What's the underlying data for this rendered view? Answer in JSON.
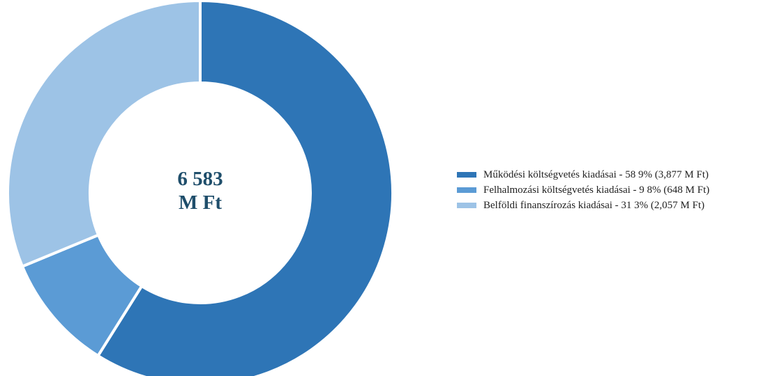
{
  "chart_data": {
    "type": "pie",
    "donut": true,
    "center_text": [
      "6 583",
      "M Ft"
    ],
    "legend_position": "right",
    "series": [
      {
        "name": "Működési költségvetés kiadásai",
        "label": "Működési költségvetés kiadásai - 58 9% (3,877 M Ft)",
        "percent": 58.9,
        "value": 3877,
        "color": "#2e75b6"
      },
      {
        "name": "Felhalmozási költségvetés kiadásai",
        "label": "Felhalmozási költségvetés kiadásai - 9 8% (648 M Ft)",
        "percent": 9.8,
        "value": 648,
        "color": "#5b9bd5"
      },
      {
        "name": "Belföldi finanszírozás kiadásai",
        "label": "Belföldi finanszírozás kiadásai - 31 3% (2,057 M Ft)",
        "percent": 31.3,
        "value": 2057,
        "color": "#9dc3e6"
      }
    ]
  }
}
